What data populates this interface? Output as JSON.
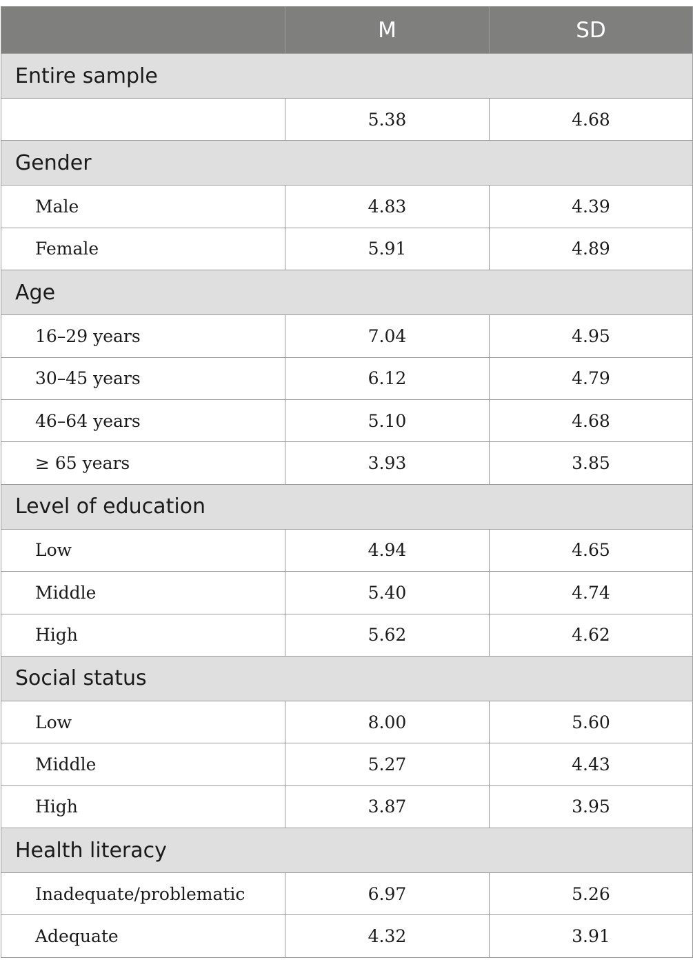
{
  "table": {
    "header": {
      "blank": "",
      "m": "M",
      "sd": "SD"
    },
    "sections": [
      {
        "title": "Entire sample",
        "rows": [
          {
            "label": "",
            "m": "5.38",
            "sd": "4.68"
          }
        ]
      },
      {
        "title": "Gender",
        "rows": [
          {
            "label": "Male",
            "m": "4.83",
            "sd": "4.39"
          },
          {
            "label": "Female",
            "m": "5.91",
            "sd": "4.89"
          }
        ]
      },
      {
        "title": "Age",
        "rows": [
          {
            "label": "16–29 years",
            "m": "7.04",
            "sd": "4.95"
          },
          {
            "label": "30–45 years",
            "m": "6.12",
            "sd": "4.79"
          },
          {
            "label": "46–64 years",
            "m": "5.10",
            "sd": "4.68"
          },
          {
            "label": "≥ 65 years",
            "m": "3.93",
            "sd": "3.85"
          }
        ]
      },
      {
        "title": "Level of education",
        "rows": [
          {
            "label": "Low",
            "m": "4.94",
            "sd": "4.65"
          },
          {
            "label": "Middle",
            "m": "5.40",
            "sd": "4.74"
          },
          {
            "label": "High",
            "m": "5.62",
            "sd": "4.62"
          }
        ]
      },
      {
        "title": "Social status",
        "rows": [
          {
            "label": "Low",
            "m": "8.00",
            "sd": "5.60"
          },
          {
            "label": "Middle",
            "m": "5.27",
            "sd": "4.43"
          },
          {
            "label": "High",
            "m": "3.87",
            "sd": "3.95"
          }
        ]
      },
      {
        "title": "Health literacy",
        "rows": [
          {
            "label": "Inadequate/problematic",
            "m": "6.97",
            "sd": "5.26"
          },
          {
            "label": "Adequate",
            "m": "4.32",
            "sd": "3.91"
          }
        ]
      }
    ]
  }
}
